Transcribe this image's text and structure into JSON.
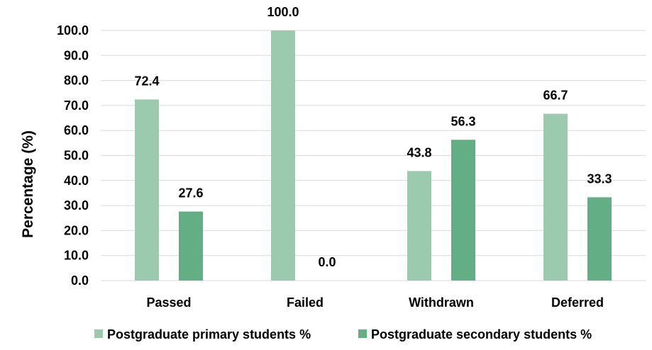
{
  "chart_data": {
    "type": "bar",
    "title": "",
    "xlabel": "",
    "ylabel": "Percentage (%)",
    "ylim": [
      0,
      100
    ],
    "yticks": [
      0,
      10,
      20,
      30,
      40,
      50,
      60,
      70,
      80,
      90,
      100
    ],
    "tick_decimals": 1,
    "categories": [
      "Passed",
      "Failed",
      "Withdrawn",
      "Deferred"
    ],
    "series": [
      {
        "name": "Postgraduate primary students %",
        "values": [
          72.4,
          100.0,
          43.8,
          66.7
        ],
        "labels": [
          "72.4",
          "100.0",
          "43.8",
          "66.7"
        ],
        "color": "#9ccaae"
      },
      {
        "name": "Postgraduate secondary students %",
        "values": [
          27.6,
          0.0,
          56.3,
          33.3
        ],
        "labels": [
          "27.6",
          "0.0",
          "56.3",
          "33.3"
        ],
        "color": "#63ae84"
      }
    ],
    "grid": true,
    "legend_position": "bottom"
  }
}
